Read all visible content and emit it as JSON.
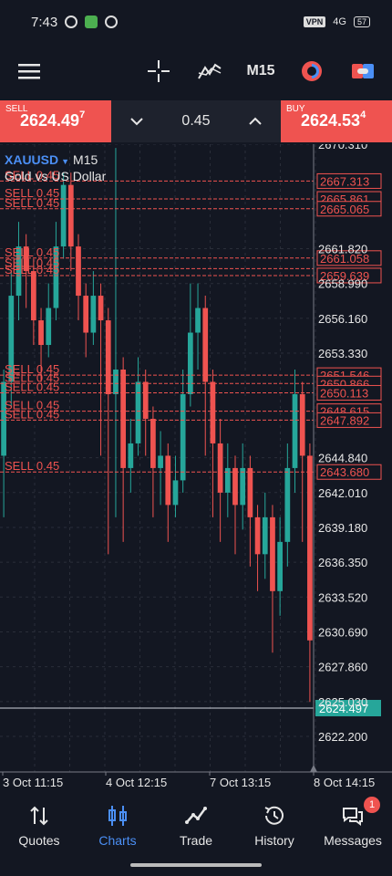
{
  "status_bar": {
    "time": "7:43",
    "vpn": "VPN",
    "network": "4G",
    "battery": "57"
  },
  "toolbar": {
    "timeframe": "M15"
  },
  "trade": {
    "sell_label": "SELL",
    "sell_price_main": "2624.49",
    "sell_price_sup": "7",
    "buy_label": "BUY",
    "buy_price_main": "2624.53",
    "buy_price_sup": "4",
    "volume": "0.45"
  },
  "chart": {
    "symbol": "XAUUSD",
    "timeframe": "M15",
    "description": "Gold vs US Dollar",
    "symbol_color": "#4b8ff5",
    "bull_color": "#26a69a",
    "bear_color": "#ef5350",
    "ylim": [
      2620.0,
      2670.0
    ],
    "price_ticks": [
      "2670.310",
      "2661.820",
      "2658.990",
      "2656.160",
      "2653.330",
      "2644.840",
      "2642.010",
      "2639.180",
      "2636.350",
      "2633.520",
      "2630.690",
      "2627.860",
      "2625.030",
      "2622.200"
    ],
    "time_labels": [
      "3 Oct 11:15",
      "4 Oct 12:15",
      "7 Oct 13:15",
      "8 Oct 14:15"
    ],
    "current_price": "2624.497",
    "orders": [
      {
        "label": "SELL 0.45",
        "price": 2667.313,
        "price_label": "2667.313"
      },
      {
        "label": "SELL 0.45",
        "price": 2665.861,
        "price_label": "2665.861"
      },
      {
        "label": "SELL 0.45",
        "price": 2665.065,
        "price_label": "2665.065"
      },
      {
        "label": "SELL 0.45",
        "price": 2661.058,
        "price_label": "2661.058"
      },
      {
        "label": "SELL 0.45",
        "price": 2660.2,
        "price_label": ""
      },
      {
        "label": "SELL 0.45",
        "price": 2659.639,
        "price_label": "2659.639"
      },
      {
        "label": "SELL 0.45",
        "price": 2651.546,
        "price_label": "2651.546"
      },
      {
        "label": "SELL 0.45",
        "price": 2650.866,
        "price_label": "2650.866"
      },
      {
        "label": "SELL 0.45",
        "price": 2650.113,
        "price_label": "2650.113"
      },
      {
        "label": "SELL 0.45",
        "price": 2648.615,
        "price_label": "2648.615"
      },
      {
        "label": "SELL 0.45",
        "price": 2647.892,
        "price_label": "2647.892"
      },
      {
        "label": "SELL 0.45",
        "price": 2643.68,
        "price_label": "2643.680"
      }
    ],
    "candles": [
      [
        2645,
        2651,
        2652,
        2640
      ],
      [
        2651,
        2658,
        2660,
        2649
      ],
      [
        2658,
        2662,
        2664,
        2656
      ],
      [
        2662,
        2660,
        2663,
        2657
      ],
      [
        2660,
        2656,
        2661,
        2654
      ],
      [
        2656,
        2654,
        2657,
        2651
      ],
      [
        2654,
        2657,
        2659,
        2653
      ],
      [
        2657,
        2662,
        2664,
        2656
      ],
      [
        2662,
        2667,
        2668,
        2661
      ],
      [
        2667,
        2662,
        2668,
        2660
      ],
      [
        2662,
        2658,
        2663,
        2656
      ],
      [
        2658,
        2655,
        2659,
        2653
      ],
      [
        2655,
        2658,
        2660,
        2654
      ],
      [
        2658,
        2656,
        2659,
        2645
      ],
      [
        2656,
        2650,
        2657,
        2637
      ],
      [
        2650,
        2652,
        2670,
        2640
      ],
      [
        2652,
        2644,
        2653,
        2638
      ],
      [
        2644,
        2646,
        2648,
        2642
      ],
      [
        2646,
        2651,
        2653,
        2645
      ],
      [
        2651,
        2648,
        2652,
        2645
      ],
      [
        2648,
        2644,
        2649,
        2640
      ],
      [
        2644,
        2645,
        2647,
        2641
      ],
      [
        2645,
        2641,
        2646,
        2638
      ],
      [
        2641,
        2643,
        2645,
        2640
      ],
      [
        2643,
        2650,
        2652,
        2642
      ],
      [
        2650,
        2655,
        2659,
        2649
      ],
      [
        2655,
        2657,
        2659,
        2652
      ],
      [
        2657,
        2651,
        2658,
        2645
      ],
      [
        2651,
        2646,
        2652,
        2640
      ],
      [
        2646,
        2642,
        2648,
        2638
      ],
      [
        2642,
        2644,
        2646,
        2640
      ],
      [
        2644,
        2641,
        2645,
        2637
      ],
      [
        2641,
        2644,
        2646,
        2639
      ],
      [
        2644,
        2640,
        2645,
        2636
      ],
      [
        2640,
        2637,
        2641,
        2634
      ],
      [
        2637,
        2640,
        2642,
        2635
      ],
      [
        2640,
        2634,
        2641,
        2629
      ],
      [
        2634,
        2638,
        2640,
        2632
      ],
      [
        2638,
        2644,
        2646,
        2636
      ],
      [
        2644,
        2650,
        2652,
        2642
      ],
      [
        2650,
        2645,
        2651,
        2638
      ],
      [
        2645,
        2630,
        2646,
        2625
      ]
    ]
  },
  "nav": [
    {
      "label": "Quotes"
    },
    {
      "label": "Charts"
    },
    {
      "label": "Trade"
    },
    {
      "label": "History"
    },
    {
      "label": "Messages",
      "badge": "1"
    }
  ]
}
